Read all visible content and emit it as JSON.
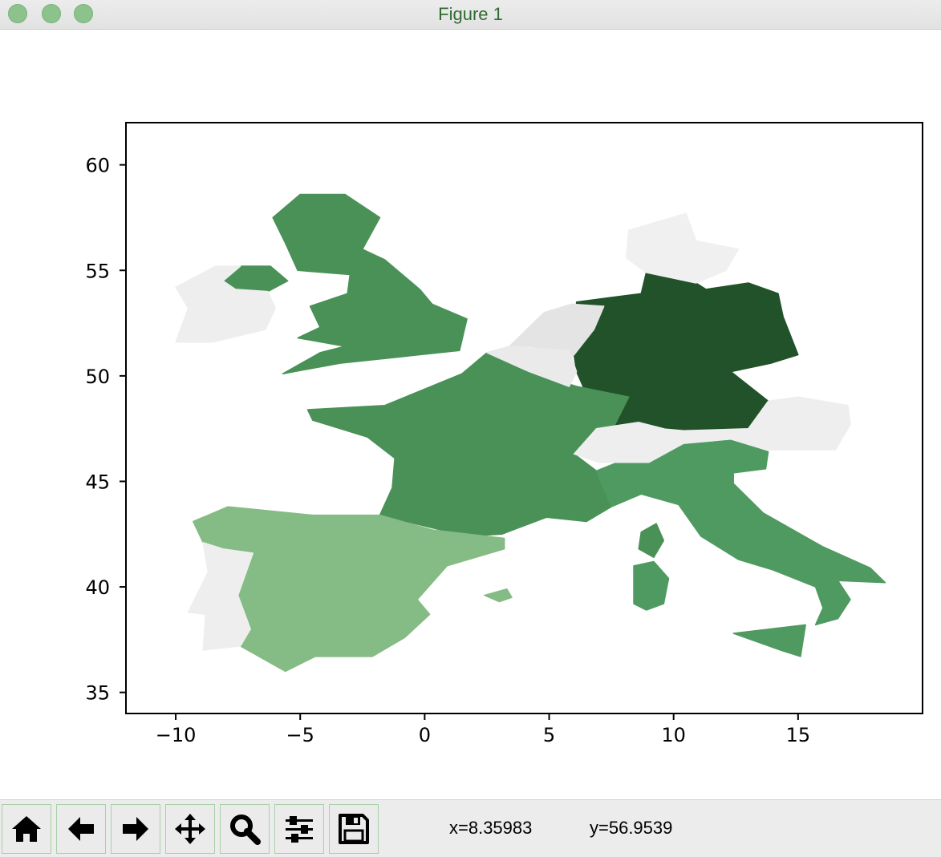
{
  "window": {
    "title": "Figure 1"
  },
  "toolbar": {
    "buttons": [
      {
        "name": "home-button",
        "icon": "home-icon"
      },
      {
        "name": "back-button",
        "icon": "arrow-left-icon"
      },
      {
        "name": "forward-button",
        "icon": "arrow-right-icon"
      },
      {
        "name": "pan-button",
        "icon": "move-icon"
      },
      {
        "name": "zoom-button",
        "icon": "magnifier-icon"
      },
      {
        "name": "configure-subplots-button",
        "icon": "sliders-icon"
      },
      {
        "name": "save-button",
        "icon": "floppy-disk-icon"
      }
    ],
    "x_readout": "x=8.35983",
    "y_readout": "y=56.9539"
  },
  "colors": {
    "traffic_light": "#8cc28c",
    "germany": "#225229",
    "france_uk": "#4a9158",
    "italy": "#4f9a60",
    "spain": "#85bb84",
    "neutral": "#eeeeee"
  },
  "chart_data": {
    "type": "map",
    "title": "",
    "xlabel": "",
    "ylabel": "",
    "xlim": [
      -12,
      20
    ],
    "ylim": [
      34,
      62
    ],
    "x_ticks": [
      -10,
      -5,
      0,
      5,
      10,
      15
    ],
    "x_tick_labels": [
      "−10",
      "−5",
      "0",
      "5",
      "10",
      "15"
    ],
    "y_ticks": [
      35,
      40,
      45,
      50,
      55,
      60
    ],
    "y_tick_labels": [
      "35",
      "40",
      "45",
      "50",
      "55",
      "60"
    ],
    "grid": false,
    "regions": [
      {
        "name": "Germany",
        "fill": "#225229",
        "points": [
          [
            6.0,
            51.0
          ],
          [
            6.1,
            53.5
          ],
          [
            8.7,
            53.9
          ],
          [
            8.9,
            54.9
          ],
          [
            10.9,
            54.4
          ],
          [
            11.3,
            54.1
          ],
          [
            13.0,
            54.4
          ],
          [
            14.2,
            53.9
          ],
          [
            14.4,
            52.8
          ],
          [
            14.8,
            51.6
          ],
          [
            15.0,
            51.0
          ],
          [
            13.9,
            50.6
          ],
          [
            12.3,
            50.2
          ],
          [
            13.8,
            48.8
          ],
          [
            13.0,
            47.5
          ],
          [
            10.4,
            47.4
          ],
          [
            7.6,
            47.6
          ],
          [
            7.7,
            48.7
          ],
          [
            6.4,
            49.4
          ],
          [
            6.1,
            50.2
          ]
        ]
      },
      {
        "name": "France",
        "fill": "#4a9158",
        "points": [
          [
            -4.7,
            48.4
          ],
          [
            -1.6,
            48.6
          ],
          [
            1.5,
            50.1
          ],
          [
            2.5,
            51.1
          ],
          [
            4.2,
            50.2
          ],
          [
            6.1,
            49.5
          ],
          [
            8.2,
            49.0
          ],
          [
            7.6,
            47.6
          ],
          [
            6.0,
            46.3
          ],
          [
            6.9,
            45.5
          ],
          [
            7.5,
            43.8
          ],
          [
            6.5,
            43.1
          ],
          [
            4.9,
            43.3
          ],
          [
            3.1,
            42.5
          ],
          [
            1.7,
            42.4
          ],
          [
            -1.8,
            43.4
          ],
          [
            -1.3,
            44.7
          ],
          [
            -1.2,
            46.1
          ],
          [
            -2.3,
            47.1
          ],
          [
            -4.5,
            47.9
          ]
        ]
      },
      {
        "name": "Corsica",
        "fill": "#4a9158",
        "points": [
          [
            9.3,
            43.0
          ],
          [
            9.6,
            42.2
          ],
          [
            9.2,
            41.4
          ],
          [
            8.6,
            41.8
          ],
          [
            8.7,
            42.6
          ]
        ]
      },
      {
        "name": "Great Britain",
        "fill": "#4a9158",
        "points": [
          [
            -5.7,
            50.1
          ],
          [
            -3.4,
            50.6
          ],
          [
            1.4,
            51.2
          ],
          [
            1.7,
            52.7
          ],
          [
            0.3,
            53.4
          ],
          [
            -0.2,
            54.1
          ],
          [
            -1.6,
            55.5
          ],
          [
            -2.5,
            56.0
          ],
          [
            -1.8,
            57.5
          ],
          [
            -3.2,
            58.6
          ],
          [
            -5.0,
            58.6
          ],
          [
            -6.1,
            57.5
          ],
          [
            -5.6,
            56.3
          ],
          [
            -5.1,
            55.0
          ],
          [
            -3.0,
            54.8
          ],
          [
            -3.1,
            53.9
          ],
          [
            -4.6,
            53.3
          ],
          [
            -4.2,
            52.3
          ],
          [
            -5.1,
            51.8
          ],
          [
            -3.2,
            51.4
          ],
          [
            -4.2,
            51.1
          ]
        ]
      },
      {
        "name": "Northern Ireland",
        "fill": "#4a9158",
        "points": [
          [
            -8.1,
            54.5
          ],
          [
            -7.4,
            55.2
          ],
          [
            -6.2,
            55.2
          ],
          [
            -5.5,
            54.5
          ],
          [
            -6.3,
            54.0
          ],
          [
            -7.6,
            54.1
          ]
        ]
      },
      {
        "name": "Ireland",
        "fill": "#eeeeee",
        "points": [
          [
            -10.0,
            51.6
          ],
          [
            -9.5,
            53.2
          ],
          [
            -10.0,
            54.2
          ],
          [
            -8.4,
            55.2
          ],
          [
            -7.4,
            55.2
          ],
          [
            -8.1,
            54.5
          ],
          [
            -7.6,
            54.1
          ],
          [
            -6.3,
            54.0
          ],
          [
            -6.0,
            53.2
          ],
          [
            -6.4,
            52.2
          ],
          [
            -8.5,
            51.6
          ]
        ]
      },
      {
        "name": "Spain",
        "fill": "#85bb84",
        "points": [
          [
            -9.3,
            43.1
          ],
          [
            -7.9,
            43.8
          ],
          [
            -4.5,
            43.4
          ],
          [
            -1.8,
            43.4
          ],
          [
            0.3,
            42.7
          ],
          [
            3.2,
            42.3
          ],
          [
            3.2,
            41.8
          ],
          [
            0.9,
            41.0
          ],
          [
            -0.3,
            39.4
          ],
          [
            0.2,
            38.7
          ],
          [
            -0.8,
            37.6
          ],
          [
            -2.1,
            36.7
          ],
          [
            -4.4,
            36.7
          ],
          [
            -5.6,
            36.0
          ],
          [
            -7.4,
            37.2
          ],
          [
            -7.0,
            38.0
          ],
          [
            -7.5,
            39.6
          ],
          [
            -6.9,
            41.6
          ],
          [
            -8.1,
            41.8
          ],
          [
            -8.9,
            42.1
          ]
        ]
      },
      {
        "name": "Portugal",
        "fill": "#eeeeee",
        "points": [
          [
            -8.9,
            42.1
          ],
          [
            -8.1,
            41.8
          ],
          [
            -6.9,
            41.6
          ],
          [
            -7.5,
            39.6
          ],
          [
            -7.0,
            38.0
          ],
          [
            -7.4,
            37.2
          ],
          [
            -8.9,
            37.0
          ],
          [
            -8.8,
            38.7
          ],
          [
            -9.5,
            38.8
          ],
          [
            -8.7,
            40.7
          ]
        ]
      },
      {
        "name": "Italy",
        "fill": "#4f9a60",
        "points": [
          [
            6.9,
            45.5
          ],
          [
            7.5,
            43.8
          ],
          [
            8.7,
            44.4
          ],
          [
            10.2,
            43.9
          ],
          [
            11.1,
            42.4
          ],
          [
            12.6,
            41.3
          ],
          [
            14.0,
            40.8
          ],
          [
            15.7,
            40.0
          ],
          [
            16.0,
            39.0
          ],
          [
            15.7,
            38.2
          ],
          [
            16.6,
            38.5
          ],
          [
            17.1,
            39.4
          ],
          [
            16.6,
            40.3
          ],
          [
            18.5,
            40.2
          ],
          [
            17.9,
            40.9
          ],
          [
            16.0,
            41.9
          ],
          [
            13.6,
            43.5
          ],
          [
            12.4,
            44.9
          ],
          [
            12.4,
            45.4
          ],
          [
            13.7,
            45.6
          ],
          [
            13.8,
            46.4
          ],
          [
            12.3,
            47.0
          ],
          [
            10.4,
            46.8
          ],
          [
            8.4,
            46.2
          ]
        ]
      },
      {
        "name": "Sicily",
        "fill": "#4f9a60",
        "points": [
          [
            12.4,
            37.8
          ],
          [
            15.3,
            38.2
          ],
          [
            15.1,
            36.7
          ],
          [
            14.3,
            37.0
          ]
        ]
      },
      {
        "name": "Sardinia",
        "fill": "#4f9a60",
        "points": [
          [
            8.4,
            41.0
          ],
          [
            9.2,
            41.2
          ],
          [
            9.8,
            40.4
          ],
          [
            9.6,
            39.2
          ],
          [
            8.9,
            38.9
          ],
          [
            8.4,
            39.2
          ]
        ]
      },
      {
        "name": "Mallorca",
        "fill": "#85bb84",
        "points": [
          [
            2.4,
            39.6
          ],
          [
            3.3,
            39.9
          ],
          [
            3.5,
            39.5
          ],
          [
            3.0,
            39.3
          ]
        ]
      },
      {
        "name": "Switzerland",
        "fill": "#eeeeee",
        "points": [
          [
            6.0,
            46.3
          ],
          [
            6.9,
            47.5
          ],
          [
            8.6,
            47.8
          ],
          [
            9.6,
            47.5
          ],
          [
            10.4,
            46.8
          ],
          [
            9.0,
            45.9
          ],
          [
            7.0,
            45.9
          ]
        ]
      },
      {
        "name": "Austria",
        "fill": "#eeeeee",
        "points": [
          [
            9.5,
            47.5
          ],
          [
            10.4,
            47.4
          ],
          [
            13.0,
            47.5
          ],
          [
            13.8,
            48.8
          ],
          [
            15.0,
            49.0
          ],
          [
            17.0,
            48.6
          ],
          [
            17.1,
            47.7
          ],
          [
            16.5,
            46.5
          ],
          [
            13.7,
            46.5
          ],
          [
            12.3,
            47.0
          ],
          [
            10.4,
            46.8
          ]
        ]
      },
      {
        "name": "Netherlands",
        "fill": "#e4e4e4",
        "points": [
          [
            3.4,
            51.4
          ],
          [
            4.8,
            53.0
          ],
          [
            5.9,
            53.4
          ],
          [
            7.2,
            53.3
          ],
          [
            6.8,
            52.2
          ],
          [
            6.0,
            51.0
          ],
          [
            5.8,
            50.8
          ],
          [
            4.3,
            51.4
          ]
        ]
      },
      {
        "name": "Belgium",
        "fill": "#eaeaea",
        "points": [
          [
            2.5,
            51.1
          ],
          [
            3.4,
            51.4
          ],
          [
            5.8,
            51.2
          ],
          [
            6.1,
            50.2
          ],
          [
            5.8,
            49.5
          ],
          [
            4.2,
            50.2
          ]
        ]
      },
      {
        "name": "Denmark",
        "fill": "#f0f0f0",
        "points": [
          [
            8.1,
            55.6
          ],
          [
            8.2,
            56.9
          ],
          [
            10.5,
            57.7
          ],
          [
            10.9,
            56.4
          ],
          [
            12.6,
            56.0
          ],
          [
            12.1,
            55.0
          ],
          [
            10.9,
            54.4
          ],
          [
            8.9,
            54.9
          ]
        ]
      }
    ]
  }
}
